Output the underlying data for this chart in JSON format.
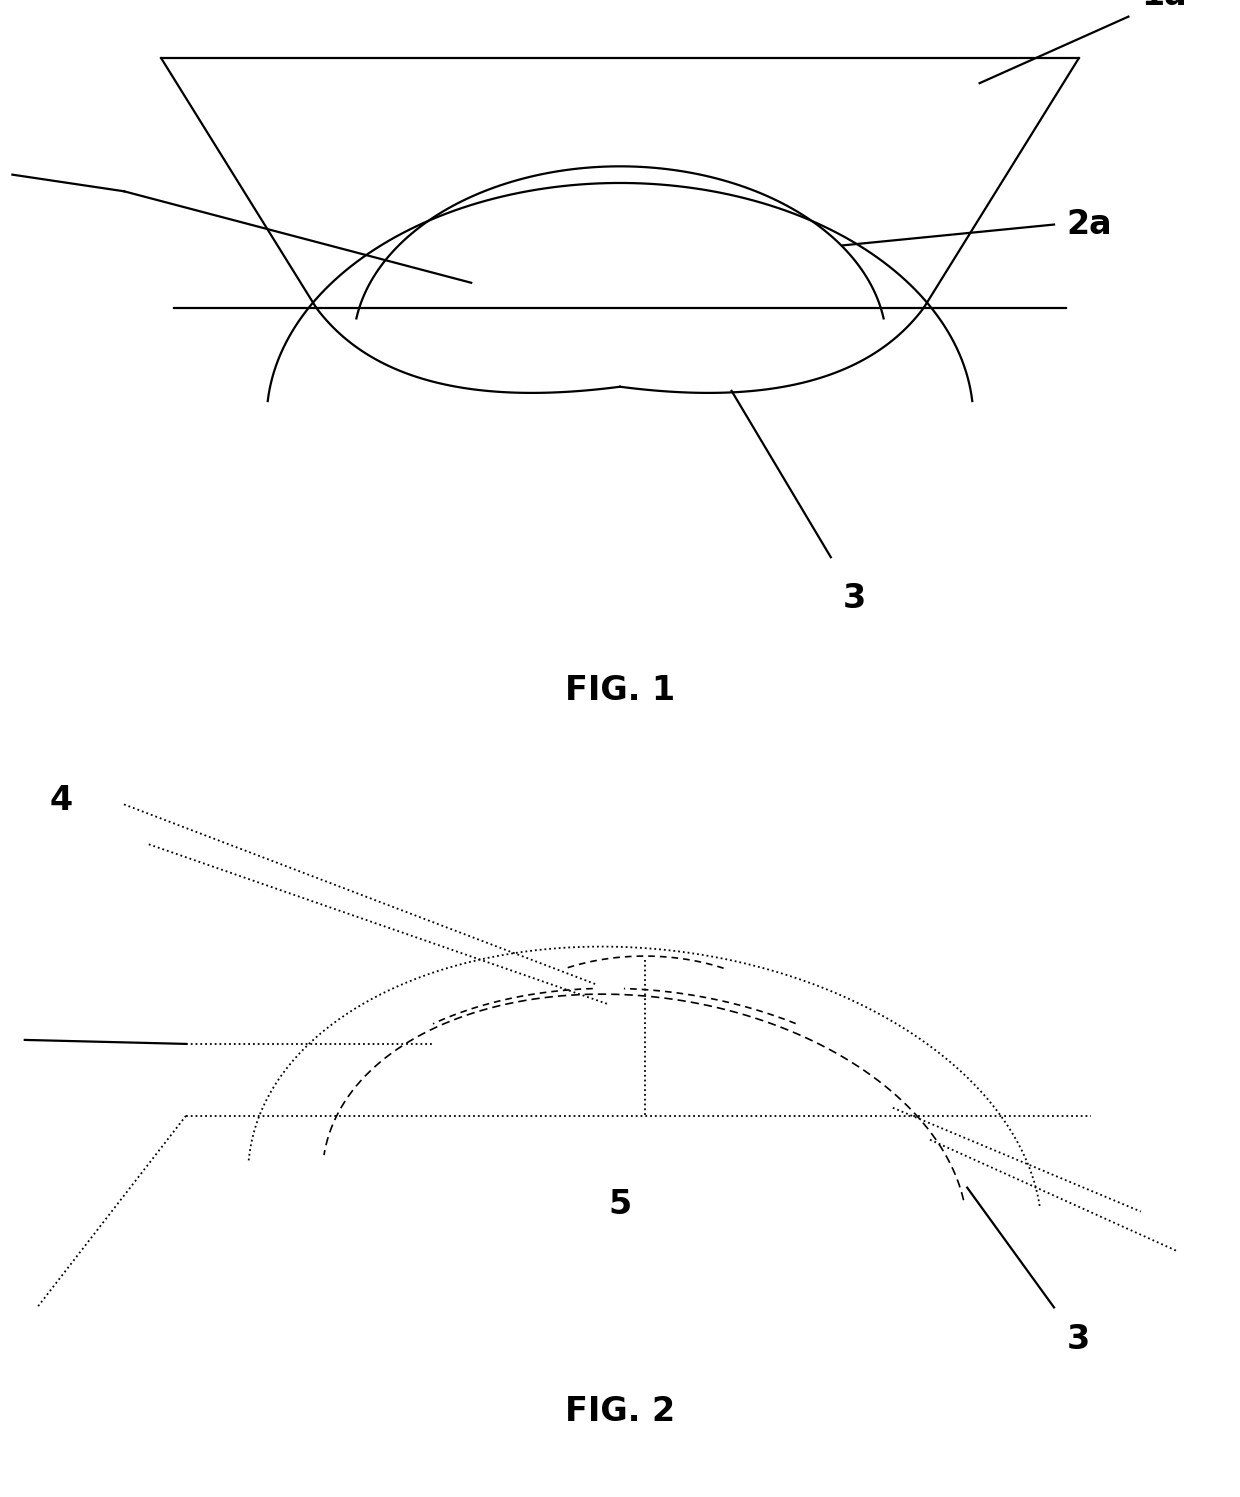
{
  "bg_color": "#ffffff",
  "line_color": "#000000",
  "fig1_label": "FIG. 1",
  "fig2_label": "FIG. 2",
  "annotation_fontsize": 24,
  "fig_label_fontsize": 24,
  "lw_solid": 1.6,
  "lw_dot": 1.3,
  "lw_dash": 1.2
}
